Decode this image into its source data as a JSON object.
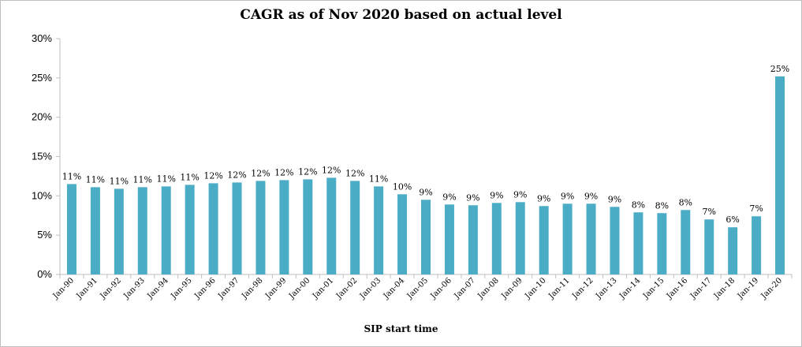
{
  "chart_data": {
    "type": "bar",
    "title": "CAGR as of Nov 2020 based on actual level",
    "xlabel": "SIP start time",
    "ylabel": "",
    "ylim": [
      0,
      30
    ],
    "y_ticks": [
      "0%",
      "5%",
      "10%",
      "15%",
      "20%",
      "25%",
      "30%"
    ],
    "grid": false,
    "legend": "none",
    "bar_color": "#4BACC6",
    "categories": [
      "Jan-90",
      "Jan-91",
      "Jan-92",
      "Jan-93",
      "Jan-94",
      "Jan-95",
      "Jan-96",
      "Jan-97",
      "Jan-98",
      "Jan-99",
      "Jan-00",
      "Jan-01",
      "Jan-02",
      "Jan-03",
      "Jan-04",
      "Jan-05",
      "Jan-06",
      "Jan-07",
      "Jan-08",
      "Jan-09",
      "Jan-10",
      "Jan-11",
      "Jan-12",
      "Jan-13",
      "Jan-14",
      "Jan-15",
      "Jan-16",
      "Jan-17",
      "Jan-18",
      "Jan-19",
      "Jan-20"
    ],
    "values": [
      11.5,
      11.1,
      10.9,
      11.1,
      11.2,
      11.4,
      11.6,
      11.7,
      11.9,
      12.0,
      12.1,
      12.3,
      11.9,
      11.2,
      10.2,
      9.5,
      8.9,
      8.8,
      9.1,
      9.2,
      8.7,
      9.0,
      9.0,
      8.6,
      7.9,
      7.8,
      8.2,
      7.0,
      6.0,
      7.4,
      25.2
    ],
    "data_labels": [
      "11%",
      "11%",
      "11%",
      "11%",
      "11%",
      "11%",
      "12%",
      "12%",
      "12%",
      "12%",
      "12%",
      "12%",
      "12%",
      "11%",
      "10%",
      "9%",
      "9%",
      "9%",
      "9%",
      "9%",
      "9%",
      "9%",
      "9%",
      "9%",
      "8%",
      "8%",
      "8%",
      "7%",
      "6%",
      "7%",
      "25%"
    ]
  }
}
